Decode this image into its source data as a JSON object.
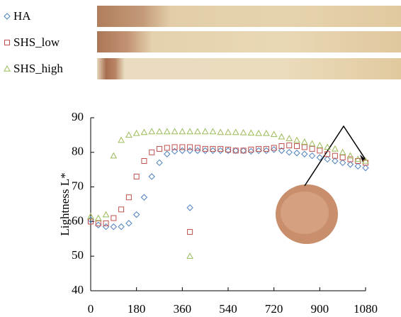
{
  "chart_data": {
    "type": "scatter",
    "y_label": "Lightness L*",
    "xlim": [
      0,
      1080
    ],
    "xticks": [
      0,
      180,
      360,
      540,
      720,
      900,
      1080
    ],
    "ylim": [
      40,
      90
    ],
    "yticks": [
      40,
      50,
      60,
      70,
      80,
      90
    ],
    "series": [
      {
        "name": "HA",
        "color": "#4f81bd",
        "marker": "diamond",
        "x": [
          0,
          30,
          60,
          90,
          120,
          150,
          180,
          210,
          240,
          270,
          300,
          330,
          360,
          390,
          420,
          450,
          480,
          510,
          540,
          570,
          600,
          630,
          660,
          690,
          720,
          750,
          780,
          810,
          840,
          870,
          900,
          930,
          960,
          990,
          1020,
          1050,
          1080,
          390
        ],
        "values": [
          60.5,
          59,
          58.5,
          58.5,
          58.5,
          59.5,
          62,
          67,
          73,
          77,
          79.5,
          80.3,
          80.5,
          80.5,
          80.5,
          80.5,
          80.5,
          80.5,
          80.5,
          80.5,
          80.5,
          80.3,
          80.5,
          80.5,
          80.8,
          80.5,
          80,
          79.8,
          79.5,
          79,
          78.5,
          78,
          77.5,
          77,
          76.5,
          76,
          75.5,
          64
        ]
      },
      {
        "name": "SHS_low",
        "color": "#c0504d",
        "marker": "square",
        "x": [
          0,
          30,
          60,
          90,
          120,
          150,
          180,
          210,
          240,
          270,
          300,
          330,
          360,
          390,
          420,
          450,
          480,
          510,
          540,
          570,
          600,
          630,
          660,
          690,
          720,
          750,
          780,
          810,
          840,
          870,
          900,
          930,
          960,
          990,
          1020,
          1050,
          1080,
          390
        ],
        "values": [
          60,
          59.5,
          59.5,
          61,
          63.5,
          67,
          73,
          77.5,
          80,
          81,
          81.3,
          81.5,
          81.5,
          81.5,
          81.3,
          81,
          81,
          81,
          80.8,
          80.5,
          80.5,
          80.8,
          81,
          81,
          81.3,
          81.8,
          82,
          81.8,
          81.5,
          81,
          80.5,
          79.5,
          79,
          78.5,
          78,
          77.5,
          77,
          57
        ]
      },
      {
        "name": "SHS_high",
        "color": "#9bbb59",
        "marker": "triangle",
        "x": [
          0,
          30,
          60,
          90,
          120,
          150,
          180,
          210,
          240,
          270,
          300,
          330,
          360,
          390,
          420,
          450,
          480,
          510,
          540,
          570,
          600,
          630,
          660,
          690,
          720,
          750,
          780,
          810,
          840,
          870,
          900,
          930,
          960,
          990,
          1020,
          1050,
          1080,
          390
        ],
        "values": [
          61.5,
          61,
          62,
          79,
          83.5,
          85,
          85.5,
          85.8,
          86,
          86,
          86,
          86,
          86,
          86,
          86,
          86,
          86,
          85.8,
          85.8,
          85.8,
          85.7,
          85.6,
          85.5,
          85.5,
          85.2,
          84.5,
          84,
          83.5,
          83,
          82.5,
          82,
          81.5,
          81,
          80,
          79,
          78,
          77.5,
          50
        ]
      }
    ]
  }
}
